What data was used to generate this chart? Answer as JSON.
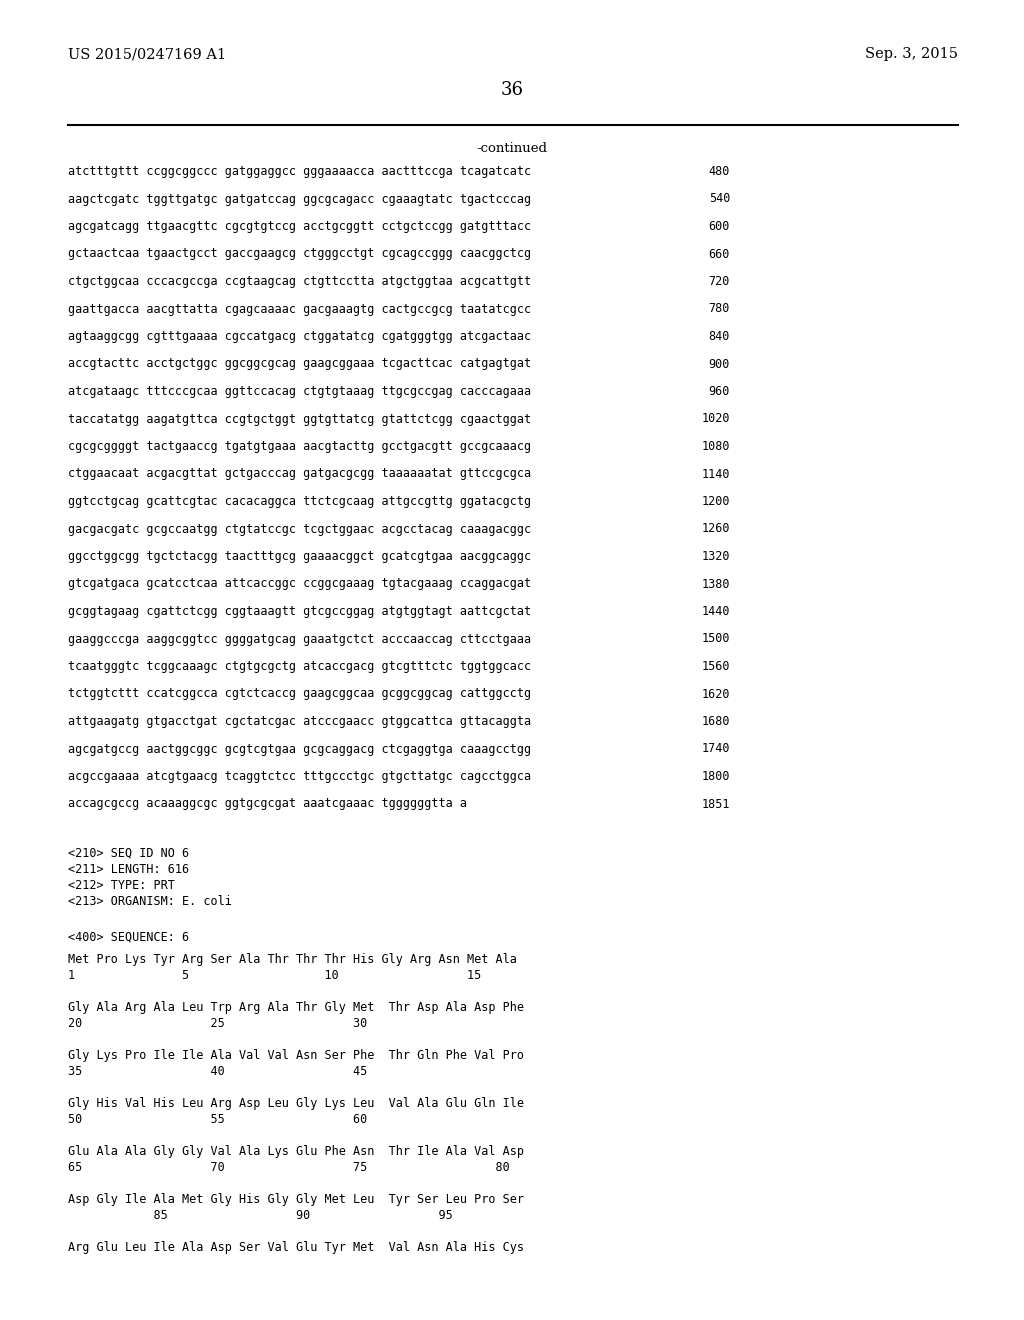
{
  "header_left": "US 2015/0247169 A1",
  "header_right": "Sep. 3, 2015",
  "page_number": "36",
  "continued_label": "-continued",
  "bg_color": "#ffffff",
  "text_color": "#000000",
  "header_font_size": 10.5,
  "page_num_font_size": 13,
  "mono_font_size": 8.5,
  "sequence_lines": [
    [
      "atctttgttt ccggcggccc gatggaggcc gggaaaacca aactttccga tcagatcatc",
      "480"
    ],
    [
      "aagctcgatc tggttgatgc gatgatccag ggcgcagacc cgaaagtatc tgactcccag",
      "540"
    ],
    [
      "agcgatcagg ttgaacgttc cgcgtgtccg acctgcggtt cctgctccgg gatgtttacc",
      "600"
    ],
    [
      "gctaactcaa tgaactgcct gaccgaagcg ctgggcctgt cgcagccggg caacggctcg",
      "660"
    ],
    [
      "ctgctggcaa cccacgccga ccgtaagcag ctgttcctta atgctggtaa acgcattgtt",
      "720"
    ],
    [
      "gaattgacca aacgttatta cgagcaaaac gacgaaagtg cactgccgcg taatatcgcc",
      "780"
    ],
    [
      "agtaaggcgg cgtttgaaaa cgccatgacg ctggatatcg cgatgggtgg atcgactaac",
      "840"
    ],
    [
      "accgtacttc acctgctggc ggcggcgcag gaagcggaaa tcgacttcac catgagtgat",
      "900"
    ],
    [
      "atcgataagc tttcccgcaa ggttccacag ctgtgtaaag ttgcgccgag cacccagaaa",
      "960"
    ],
    [
      "taccatatgg aagatgttca ccgtgctggt ggtgttatcg gtattctcgg cgaactggat",
      "1020"
    ],
    [
      "cgcgcggggt tactgaaccg tgatgtgaaa aacgtacttg gcctgacgtt gccgcaaacg",
      "1080"
    ],
    [
      "ctggaacaat acgacgttat gctgacccag gatgacgcgg taaaaaatat gttccgcgca",
      "1140"
    ],
    [
      "ggtcctgcag gcattcgtac cacacaggca ttctcgcaag attgccgttg ggatacgctg",
      "1200"
    ],
    [
      "gacgacgatc gcgccaatgg ctgtatccgc tcgctggaac acgcctacag caaagacggc",
      "1260"
    ],
    [
      "ggcctggcgg tgctctacgg taactttgcg gaaaacggct gcatcgtgaa aacggcaggc",
      "1320"
    ],
    [
      "gtcgatgaca gcatcctcaa attcaccggc ccggcgaaag tgtacgaaag ccaggacgat",
      "1380"
    ],
    [
      "gcggtagaag cgattctcgg cggtaaagtt gtcgccggag atgtggtagt aattcgctat",
      "1440"
    ],
    [
      "gaaggcccga aaggcggtcc ggggatgcag gaaatgctct acccaaccag cttcctgaaa",
      "1500"
    ],
    [
      "tcaatgggtc tcggcaaagc ctgtgcgctg atcaccgacg gtcgtttctc tggtggcacc",
      "1560"
    ],
    [
      "tctggtcttt ccatcggcca cgtctcaccg gaagcggcaa gcggcggcag cattggcctg",
      "1620"
    ],
    [
      "attgaagatg gtgacctgat cgctatcgac atcccgaacc gtggcattca gttacaggta",
      "1680"
    ],
    [
      "agcgatgccg aactggcggc gcgtcgtgaa gcgcaggacg ctcgaggtga caaagcctgg",
      "1740"
    ],
    [
      "acgccgaaaa atcgtgaacg tcaggtctcc tttgccctgc gtgcttatgc cagcctggca",
      "1800"
    ],
    [
      "accagcgccg acaaaggcgc ggtgcgcgat aaatcgaaac tggggggtta a",
      "1851"
    ]
  ],
  "metadata_lines": [
    "<210> SEQ ID NO 6",
    "<211> LENGTH: 616",
    "<212> TYPE: PRT",
    "<213> ORGANISM: E. coli"
  ],
  "sequence_label": "<400> SEQUENCE: 6",
  "protein_lines": [
    "Met Pro Lys Tyr Arg Ser Ala Thr Thr Thr His Gly Arg Asn Met Ala",
    "1               5                   10                  15",
    "",
    "Gly Ala Arg Ala Leu Trp Arg Ala Thr Gly Met  Thr Asp Ala Asp Phe",
    "20                  25                  30",
    "",
    "Gly Lys Pro Ile Ile Ala Val Val Asn Ser Phe  Thr Gln Phe Val Pro",
    "35                  40                  45",
    "",
    "Gly His Val His Leu Arg Asp Leu Gly Lys Leu  Val Ala Glu Gln Ile",
    "50                  55                  60",
    "",
    "Glu Ala Ala Gly Gly Val Ala Lys Glu Phe Asn  Thr Ile Ala Val Asp",
    "65                  70                  75                  80",
    "",
    "Asp Gly Ile Ala Met Gly His Gly Gly Met Leu  Tyr Ser Leu Pro Ser",
    "            85                  90                  95",
    "",
    "Arg Glu Leu Ile Ala Asp Ser Val Glu Tyr Met  Val Asn Ala His Cys"
  ]
}
